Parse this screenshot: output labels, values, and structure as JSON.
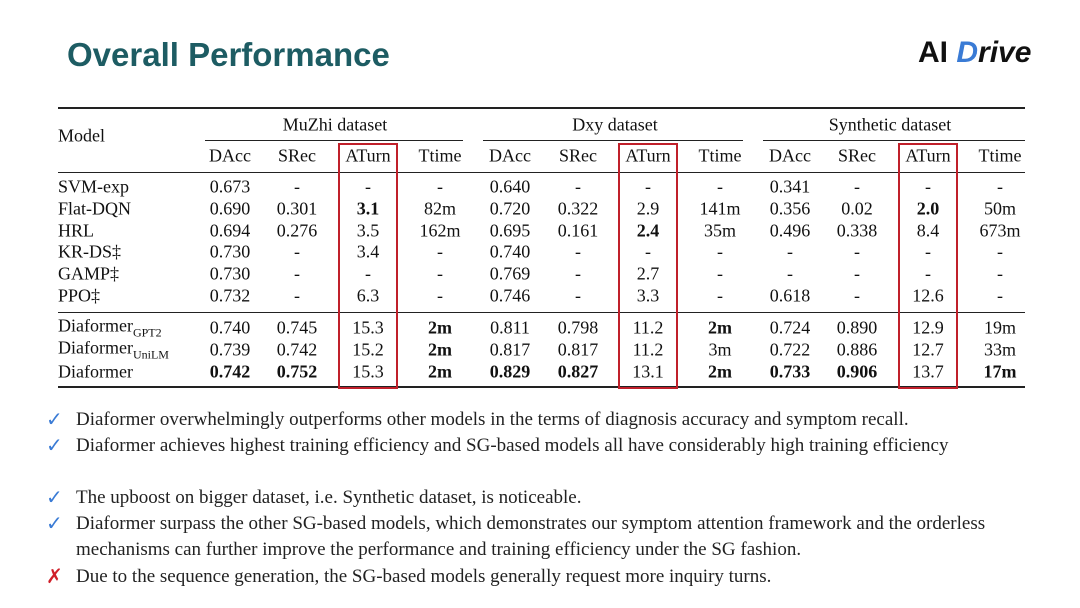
{
  "title": "Overall Performance",
  "logo": {
    "prefix": "AI",
    "mark": "D",
    "suffix": "rive"
  },
  "table": {
    "model_header": "Model",
    "groups": [
      "MuZhi dataset",
      "Dxy dataset",
      "Synthetic dataset"
    ],
    "subheaders": [
      "DAcc",
      "SRec",
      "ATurn",
      "Ttime"
    ],
    "highlight_column": "ATurn",
    "rows": [
      {
        "model": "SVM-exp",
        "cells": [
          "0.673",
          "-",
          "-",
          "-",
          "0.640",
          "-",
          "-",
          "-",
          "0.341",
          "-",
          "-",
          "-"
        ]
      },
      {
        "model": "Flat-DQN",
        "cells": [
          "0.690",
          "0.301",
          "3.1",
          "82m",
          "0.720",
          "0.322",
          "2.9",
          "141m",
          "0.356",
          "0.02",
          "2.0",
          "50m"
        ],
        "bold": [
          2,
          10
        ]
      },
      {
        "model": "HRL",
        "cells": [
          "0.694",
          "0.276",
          "3.5",
          "162m",
          "0.695",
          "0.161",
          "2.4",
          "35m",
          "0.496",
          "0.338",
          "8.4",
          "673m"
        ],
        "bold": [
          6
        ]
      },
      {
        "model": "KR-DS‡",
        "cells": [
          "0.730",
          "-",
          "3.4",
          "-",
          "0.740",
          "-",
          "-",
          "-",
          "-",
          "-",
          "-",
          "-"
        ]
      },
      {
        "model": "GAMP‡",
        "cells": [
          "0.730",
          "-",
          "-",
          "-",
          "0.769",
          "-",
          "2.7",
          "-",
          "-",
          "-",
          "-",
          "-"
        ]
      },
      {
        "model": "PPO‡",
        "cells": [
          "0.732",
          "-",
          "6.3",
          "-",
          "0.746",
          "-",
          "3.3",
          "-",
          "0.618",
          "-",
          "12.6",
          "-"
        ]
      },
      {
        "model": "Diaformer",
        "sub": "GPT2",
        "cells": [
          "0.740",
          "0.745",
          "15.3",
          "2m",
          "0.811",
          "0.798",
          "11.2",
          "2m",
          "0.724",
          "0.890",
          "12.9",
          "19m"
        ],
        "bold": [
          3,
          7
        ]
      },
      {
        "model": "Diaformer",
        "sub": "UniLM",
        "cells": [
          "0.739",
          "0.742",
          "15.2",
          "2m",
          "0.817",
          "0.817",
          "11.2",
          "3m",
          "0.722",
          "0.886",
          "12.7",
          "33m"
        ],
        "bold": [
          3
        ]
      },
      {
        "model": "Diaformer",
        "cells": [
          "0.742",
          "0.752",
          "15.3",
          "2m",
          "0.829",
          "0.827",
          "13.1",
          "2m",
          "0.733",
          "0.906",
          "13.7",
          "17m"
        ],
        "bold": [
          0,
          1,
          3,
          4,
          5,
          7,
          8,
          9,
          11
        ]
      }
    ]
  },
  "bullets": [
    {
      "mark": "✓",
      "text": "Diaformer overwhelmingly outperforms other models in the terms of diagnosis accuracy and symptom recall."
    },
    {
      "mark": "✓",
      "text": "Diaformer achieves highest training efficiency and  SG-based models all have considerably high training efficiency"
    },
    {
      "mark": "✓",
      "text": "The upboost on bigger dataset, i.e. Synthetic dataset, is noticeable."
    },
    {
      "mark": "✓",
      "text": "Diaformer surpass the other SG-based models, which demonstrates our symptom attention framework and the orderless mechanisms can further improve the performance and training efficiency under the SG fashion."
    },
    {
      "mark": "✗",
      "text": "Due to the sequence generation, the SG-based models generally request more inquiry turns."
    }
  ]
}
